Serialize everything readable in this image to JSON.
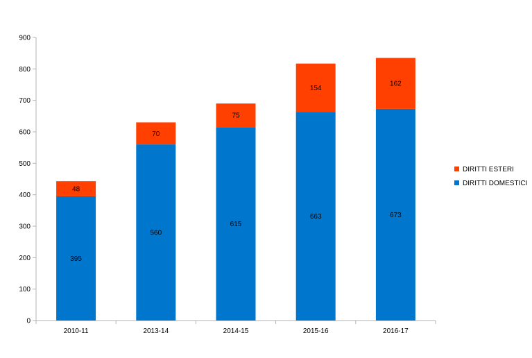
{
  "chart_data": {
    "type": "bar",
    "stacked": true,
    "categories": [
      "2010-11",
      "2013-14",
      "2014-15",
      "2015-16",
      "2016-17"
    ],
    "series": [
      {
        "name": "DIRITTI DOMESTICI",
        "color": "#0077CC",
        "values": [
          395,
          560,
          615,
          663,
          673
        ]
      },
      {
        "name": "DIRITTI ESTERI",
        "color": "#FF4000",
        "values": [
          48,
          70,
          75,
          154,
          162
        ]
      }
    ],
    "ylim": [
      0,
      900
    ],
    "yticks": [
      0,
      100,
      200,
      300,
      400,
      500,
      600,
      700,
      800,
      900
    ],
    "grid": false,
    "legend": "right",
    "legend_order": [
      "DIRITTI ESTERI",
      "DIRITTI DOMESTICI"
    ],
    "data_labels": true
  }
}
